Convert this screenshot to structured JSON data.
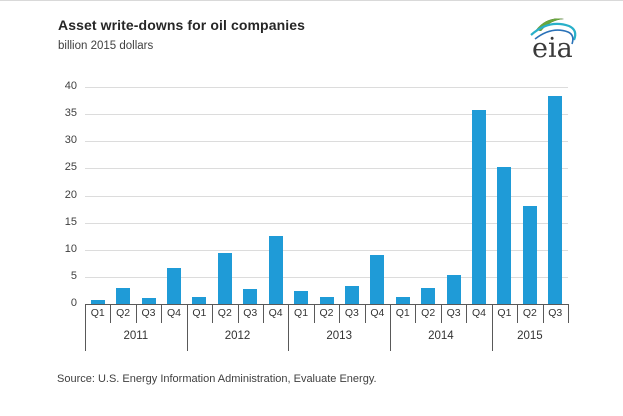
{
  "header": {
    "title": "Asset write-downs for oil companies",
    "subtitle": "billion 2015 dollars"
  },
  "logo": {
    "text": "eia"
  },
  "chart_data": {
    "type": "bar",
    "title": "Asset write-downs for oil companies",
    "ylabel": "billion 2015 dollars",
    "ylim": [
      0,
      40
    ],
    "yticks": [
      0,
      5,
      10,
      15,
      20,
      25,
      30,
      35,
      40
    ],
    "grid": "horizontal",
    "legend": "none",
    "bar_color": "#1f9bd7",
    "categories": [
      "2011 Q1",
      "2011 Q2",
      "2011 Q3",
      "2011 Q4",
      "2012 Q1",
      "2012 Q2",
      "2012 Q3",
      "2012 Q4",
      "2013 Q1",
      "2013 Q2",
      "2013 Q3",
      "2013 Q4",
      "2014 Q1",
      "2014 Q2",
      "2014 Q3",
      "2014 Q4",
      "2015 Q1",
      "2015 Q2",
      "2015 Q3"
    ],
    "values": [
      0.7,
      3.0,
      1.1,
      6.7,
      1.2,
      9.4,
      2.8,
      12.6,
      2.4,
      1.2,
      3.3,
      9.0,
      1.2,
      2.9,
      5.4,
      35.8,
      25.3,
      18.0,
      38.4
    ],
    "year_groups": [
      {
        "year": "2011",
        "quarters": [
          "Q1",
          "Q2",
          "Q3",
          "Q4"
        ]
      },
      {
        "year": "2012",
        "quarters": [
          "Q1",
          "Q2",
          "Q3",
          "Q4"
        ]
      },
      {
        "year": "2013",
        "quarters": [
          "Q1",
          "Q2",
          "Q3",
          "Q4"
        ]
      },
      {
        "year": "2014",
        "quarters": [
          "Q1",
          "Q2",
          "Q3",
          "Q4"
        ]
      },
      {
        "year": "2015",
        "quarters": [
          "Q1",
          "Q2",
          "Q3"
        ]
      }
    ]
  },
  "source": {
    "text": "Source:  U.S. Energy Information Administration, Evaluate Energy."
  }
}
